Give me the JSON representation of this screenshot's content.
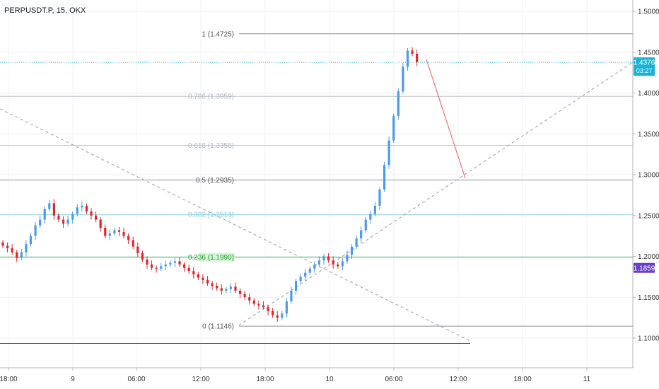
{
  "header": {
    "title": "PERPUSDT.P, 15, OKX"
  },
  "colors": {
    "up": "#4a9bed",
    "down": "#e0262b",
    "grid": "#edf0f4",
    "axis_text": "#333333",
    "fib_green": "#2ecc40",
    "fib_cyan": "#86cfe6",
    "fib_gray": "#8a8f99",
    "price_tag": "#1ab3d6",
    "price_tag2": "#6a3fc8"
  },
  "chart_data": {
    "type": "candlestick",
    "title": "PERPUSDT.P, 15, OKX",
    "y_axis": {
      "ticks": [
        "1.5000",
        "1.4500",
        "1.4000",
        "1.3500",
        "1.3000",
        "1.2500",
        "1.2000",
        "1.1500",
        "1.1000"
      ],
      "ylim": [
        1.076,
        1.5086
      ]
    },
    "x_axis": {
      "ticks": [
        "18:00",
        "9",
        "06:00",
        "12:00",
        "18:00",
        "10",
        "06:00",
        "12:00",
        "18:00",
        "11"
      ]
    },
    "fib_levels": [
      {
        "label": "1 (1.4725)",
        "value": 1.4725
      },
      {
        "label": "0.786 (1.3959)",
        "value": 1.3959
      },
      {
        "label": "0.618 (1.3358)",
        "value": 1.3358
      },
      {
        "label": "0.5 (1.2935)",
        "value": 1.2935
      },
      {
        "label": "0.382 (1.2513)",
        "value": 1.2513
      },
      {
        "label": "0.236 (1.1990)",
        "value": 1.199
      },
      {
        "label": "0 (1.1146)",
        "value": 1.1146
      }
    ],
    "current_price": {
      "value": "1.4376",
      "timer": "03:27"
    },
    "marker_price": {
      "value": "1.1859"
    },
    "horizontal_line": 1.0935,
    "close_series": [
      1.213,
      1.21,
      1.205,
      1.198,
      1.205,
      1.215,
      1.225,
      1.238,
      1.245,
      1.258,
      1.265,
      1.25,
      1.245,
      1.24,
      1.245,
      1.252,
      1.26,
      1.262,
      1.255,
      1.25,
      1.245,
      1.235,
      1.225,
      1.228,
      1.232,
      1.23,
      1.225,
      1.22,
      1.212,
      1.204,
      1.196,
      1.19,
      1.186,
      1.185,
      1.188,
      1.19,
      1.192,
      1.194,
      1.19,
      1.186,
      1.182,
      1.178,
      1.174,
      1.171,
      1.167,
      1.164,
      1.161,
      1.158,
      1.16,
      1.163,
      1.158,
      1.154,
      1.15,
      1.146,
      1.142,
      1.14,
      1.138,
      1.133,
      1.128,
      1.125,
      1.13,
      1.145,
      1.158,
      1.17,
      1.175,
      1.18,
      1.185,
      1.19,
      1.195,
      1.2,
      1.195,
      1.19,
      1.188,
      1.194,
      1.202,
      1.212,
      1.222,
      1.232,
      1.245,
      1.252,
      1.262,
      1.282,
      1.312,
      1.342,
      1.372,
      1.402,
      1.432,
      1.452,
      1.448,
      1.438
    ]
  }
}
